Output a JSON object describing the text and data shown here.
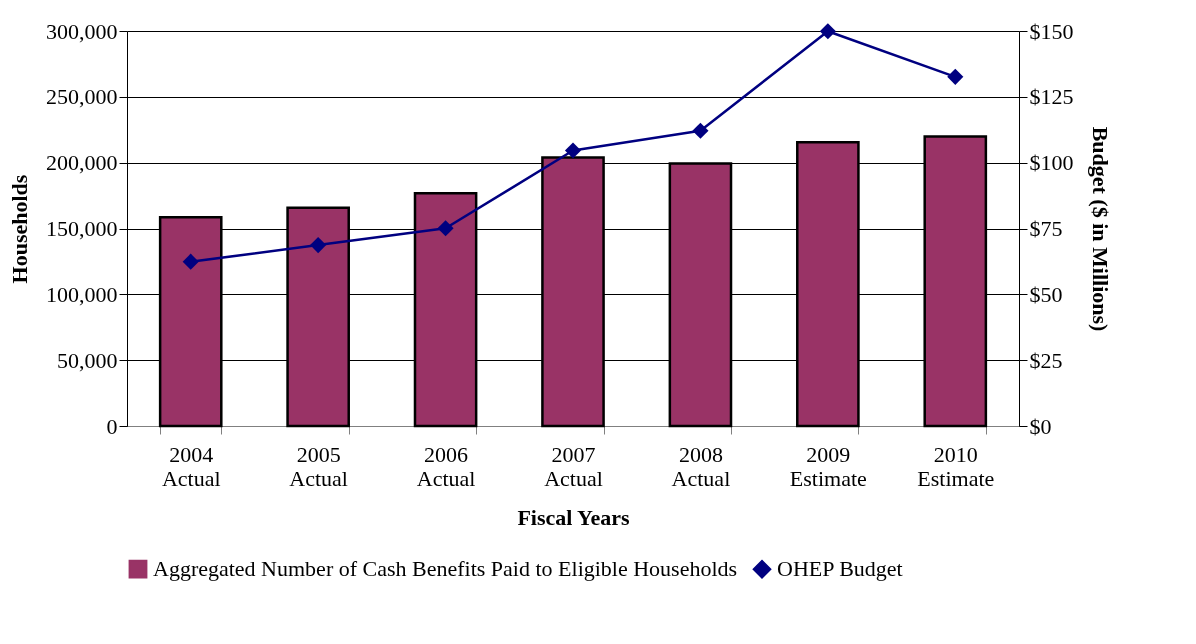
{
  "chart_data": {
    "type": "bar",
    "xlabel": "Fiscal Years",
    "ylabel": "Households",
    "y2label": "Budget ($ in Millions)",
    "categories": [
      "2004 Actual",
      "2005 Actual",
      "2006 Actual",
      "2007 Actual",
      "2008 Actual",
      "2009 Estimate",
      "2010 Estimate"
    ],
    "series": [
      {
        "name": "Aggregated Number of Cash Benefits Paid to Eligible Households",
        "color": "#993366",
        "values": [
          158600,
          165700,
          176800,
          203900,
          199400,
          215600,
          219900
        ]
      },
      {
        "name": "OHEP Budget",
        "type": "line",
        "axis": "y2",
        "marker": "diamond",
        "color": "#000080",
        "values": [
          62.4,
          68.7,
          75.1,
          104.6,
          112.1,
          149.9,
          132.6
        ]
      }
    ],
    "ylim": [
      0,
      300000
    ],
    "yticks": [
      {
        "value": 0,
        "label": "0"
      },
      {
        "value": 50000,
        "label": "50,000"
      },
      {
        "value": 100000,
        "label": "100,000"
      },
      {
        "value": 150000,
        "label": "150,000"
      },
      {
        "value": 200000,
        "label": "200,000"
      },
      {
        "value": 250000,
        "label": "250,000"
      },
      {
        "value": 300000,
        "label": "300,000"
      }
    ],
    "y2lim": [
      0,
      150
    ],
    "y2ticks": [
      {
        "value": 0,
        "label": "$0"
      },
      {
        "value": 25,
        "label": "$25"
      },
      {
        "value": 50,
        "label": "$50"
      },
      {
        "value": 75,
        "label": "$75"
      },
      {
        "value": 100,
        "label": "$100"
      },
      {
        "value": 125,
        "label": "$125"
      },
      {
        "value": 150,
        "label": "$150"
      }
    ],
    "grid": "y",
    "legend": "bottom"
  }
}
